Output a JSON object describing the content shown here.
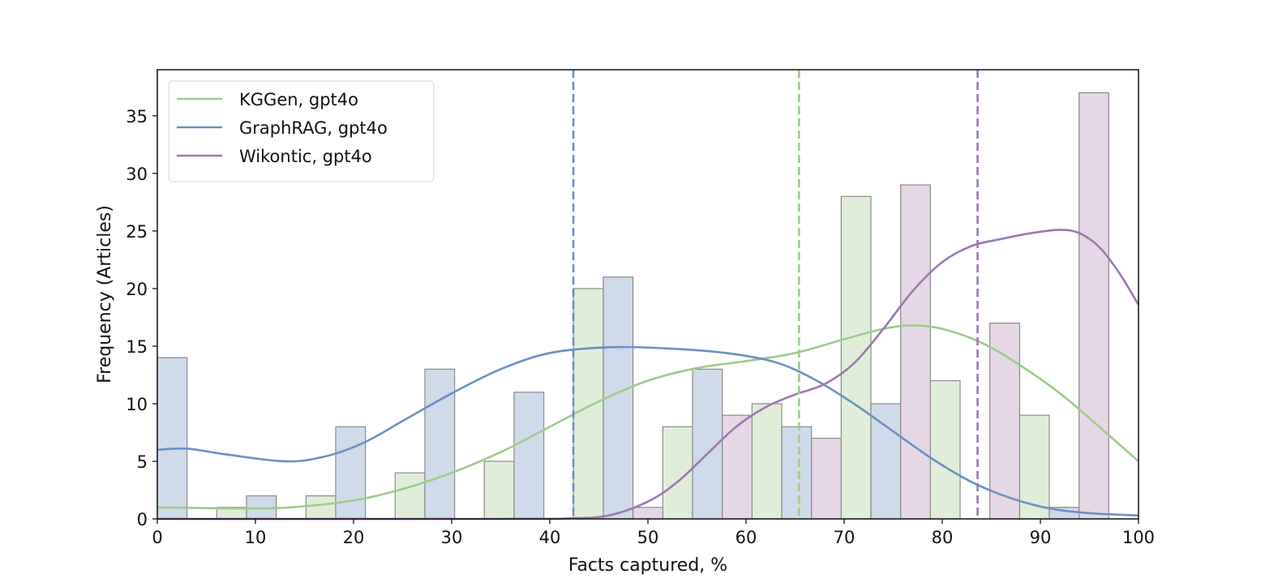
{
  "chart_data": {
    "type": "bar",
    "subtype": "histogram with KDE curves and mean lines",
    "title": "",
    "xlabel": "Facts captured, %",
    "ylabel": "Frequency (Articles)",
    "xlim": [
      0,
      100
    ],
    "ylim": [
      0,
      39
    ],
    "xticks": [
      "0",
      "10",
      "20",
      "30",
      "40",
      "50",
      "60",
      "70",
      "80",
      "90",
      "100"
    ],
    "yticks": [
      "0",
      "5",
      "10",
      "15",
      "20",
      "25",
      "30",
      "35"
    ],
    "grid": false,
    "legend_position": "top-left",
    "bin_edges": [
      0,
      9.09,
      18.18,
      27.27,
      36.36,
      45.45,
      54.55,
      63.64,
      72.73,
      81.82,
      90.91,
      100
    ],
    "series": [
      {
        "name": "KGGen, gpt4o",
        "line_color": "#9dcb8a",
        "bar_color": "#e0eed9",
        "dodge_slot": 2,
        "counts": [
          1,
          2,
          4,
          5,
          20,
          8,
          10,
          28,
          12,
          9,
          0
        ],
        "mean": 65.4,
        "kde": [
          [
            0,
            1
          ],
          [
            10,
            0.9
          ],
          [
            15,
            1.1
          ],
          [
            20,
            1.6
          ],
          [
            25,
            2.6
          ],
          [
            30,
            4
          ],
          [
            35,
            5.8
          ],
          [
            40,
            8
          ],
          [
            45,
            10.2
          ],
          [
            50,
            12
          ],
          [
            55,
            13.1
          ],
          [
            60,
            13.7
          ],
          [
            65,
            14.4
          ],
          [
            70,
            15.6
          ],
          [
            74,
            16.5
          ],
          [
            77,
            16.8
          ],
          [
            80,
            16.5
          ],
          [
            84,
            15.3
          ],
          [
            88,
            13.3
          ],
          [
            92,
            10.9
          ],
          [
            96,
            8
          ],
          [
            100,
            5
          ]
        ]
      },
      {
        "name": "GraphRAG, gpt4o",
        "line_color": "#6b8fc3",
        "bar_color": "#cfdaea",
        "dodge_slot": 0,
        "counts": [
          14,
          2,
          8,
          13,
          11,
          21,
          13,
          8,
          10,
          0,
          1
        ],
        "mean": 42.4,
        "kde": [
          [
            0,
            6
          ],
          [
            3,
            6.1
          ],
          [
            7,
            5.6
          ],
          [
            13,
            5
          ],
          [
            17,
            5.4
          ],
          [
            21,
            6.6
          ],
          [
            25,
            8.5
          ],
          [
            30,
            10.9
          ],
          [
            35,
            13
          ],
          [
            40,
            14.4
          ],
          [
            46,
            14.9
          ],
          [
            52,
            14.8
          ],
          [
            58,
            14.4
          ],
          [
            63,
            13.6
          ],
          [
            67,
            12.1
          ],
          [
            71,
            10
          ],
          [
            75,
            7.6
          ],
          [
            79,
            5.2
          ],
          [
            83,
            3.2
          ],
          [
            87,
            1.8
          ],
          [
            91,
            0.9
          ],
          [
            95,
            0.5
          ],
          [
            100,
            0.3
          ]
        ]
      },
      {
        "name": "Wikontic, gpt4o",
        "line_color": "#9b77b2",
        "bar_color": "#e6d7e7",
        "dodge_slot": 1,
        "counts": [
          0,
          0,
          0,
          0,
          0,
          1,
          9,
          7,
          29,
          17,
          37
        ],
        "mean": 83.6,
        "kde": [
          [
            0,
            0
          ],
          [
            35,
            0
          ],
          [
            42,
            0.05
          ],
          [
            46,
            0.3
          ],
          [
            50,
            1.5
          ],
          [
            53,
            3.2
          ],
          [
            56,
            5.6
          ],
          [
            59,
            8
          ],
          [
            62,
            9.7
          ],
          [
            65,
            10.8
          ],
          [
            68,
            11.7
          ],
          [
            71,
            13.5
          ],
          [
            74,
            16.5
          ],
          [
            77,
            19.8
          ],
          [
            80,
            22.3
          ],
          [
            83,
            23.7
          ],
          [
            86,
            24.3
          ],
          [
            89,
            24.8
          ],
          [
            92,
            25.1
          ],
          [
            94,
            24.8
          ],
          [
            96,
            23.6
          ],
          [
            98,
            21.4
          ],
          [
            100,
            18.6
          ]
        ]
      }
    ]
  }
}
